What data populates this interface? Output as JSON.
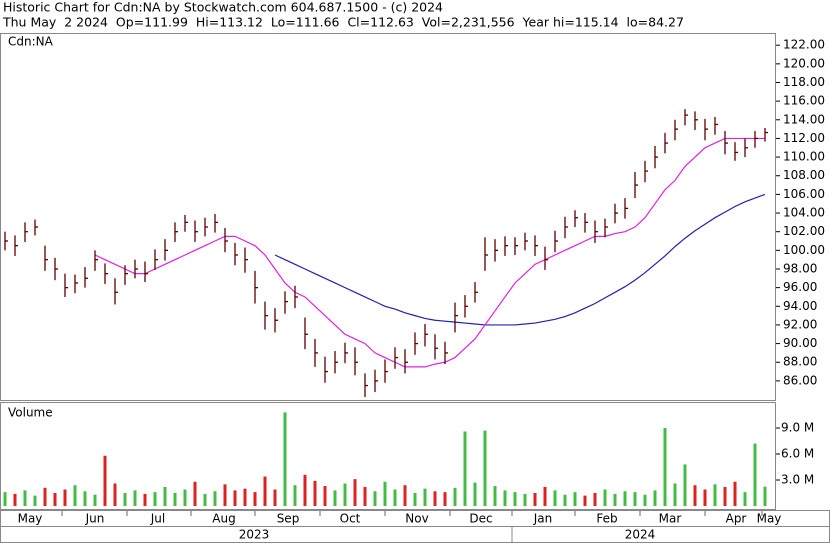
{
  "chart_data": {
    "type": "hlc",
    "title": "Historic Chart for Cdn:NA by Stockwatch.com 604.687.1500 - (c) 2024",
    "subtitle": "Thu May  2 2024  Op=111.99  Hi=113.12  Lo=111.66  Cl=112.63  Vol=2,231,556  Year hi=115.14  lo=84.27",
    "symbol_label": "Cdn:NA",
    "volume_label": "Volume",
    "months": [
      "May",
      "Jun",
      "Jul",
      "Aug",
      "Sep",
      "Oct",
      "Nov",
      "Dec",
      "Jan",
      "Feb",
      "Mar",
      "Apr",
      "May"
    ],
    "years": [
      "2023",
      "2024"
    ],
    "bar_color": "#5a0000",
    "up_color": "#44bb44",
    "down_color": "#dd2222",
    "ma_short_color": "#e020e0",
    "ma_long_color": "#2020b0",
    "ylim": [
      83.95,
      123.2
    ],
    "yticks": [
      {
        "value": 86,
        "label": "86.00"
      },
      {
        "value": 88,
        "label": "88.00"
      },
      {
        "value": 90,
        "label": "90.00"
      },
      {
        "value": 92,
        "label": "92.00"
      },
      {
        "value": 94,
        "label": "94.00"
      },
      {
        "value": 96,
        "label": "96.00"
      },
      {
        "value": 98,
        "label": "98.00"
      },
      {
        "value": 100,
        "label": "100.00"
      },
      {
        "value": 102,
        "label": "102.00"
      },
      {
        "value": 104,
        "label": "104.00"
      },
      {
        "value": 106,
        "label": "106.00"
      },
      {
        "value": 108,
        "label": "108.00"
      },
      {
        "value": 110,
        "label": "110.00"
      },
      {
        "value": 112,
        "label": "112.00"
      },
      {
        "value": 114,
        "label": "114.00"
      },
      {
        "value": 116,
        "label": "116.00"
      },
      {
        "value": 118,
        "label": "118.00"
      },
      {
        "value": 120,
        "label": "120.00"
      },
      {
        "value": 122,
        "label": "122.00"
      }
    ],
    "volume_ylim": [
      0,
      12
    ],
    "volume_yticks": [
      {
        "value": 3,
        "label": "3.0 M"
      },
      {
        "value": 6,
        "label": "6.0 M"
      },
      {
        "value": 9,
        "label": "9.0 M"
      }
    ],
    "close": [
      101,
      100.5,
      102,
      102.5,
      99,
      98,
      96,
      96.5,
      97,
      99,
      97.5,
      95.5,
      97.5,
      98,
      97.5,
      99,
      100,
      102,
      103,
      102,
      102.5,
      103,
      101,
      99.5,
      99,
      96,
      93,
      92.5,
      94.5,
      95,
      91,
      89,
      87,
      88,
      89,
      88,
      85.5,
      86,
      87,
      88.5,
      88,
      90,
      91,
      89.5,
      89,
      93,
      94,
      95.5,
      99.5,
      100,
      100.5,
      100.5,
      101,
      100.5,
      99,
      101,
      102.5,
      103.5,
      103,
      102,
      102.5,
      104,
      104.5,
      107,
      108.5,
      110,
      111.5,
      113,
      114.5,
      114,
      113,
      113.5,
      111.5,
      110.5,
      111,
      112,
      112.63
    ],
    "high": [
      102,
      101.6,
      103,
      103.3,
      100.5,
      99.2,
      97.5,
      97.4,
      98.2,
      100,
      98.6,
      97,
      98.4,
      99,
      98.8,
      100.1,
      101.2,
      103,
      103.8,
      103.2,
      103.5,
      103.9,
      102.4,
      100.8,
      100.3,
      97.8,
      94.5,
      93.8,
      95.6,
      96.2,
      92.8,
      90.5,
      88.6,
      89.2,
      90.1,
      89.6,
      86.8,
      87.2,
      88.3,
      89.6,
      89.4,
      91.2,
      92.1,
      91,
      90.2,
      94.4,
      95.2,
      96.6,
      101.4,
      101.2,
      101.5,
      101.4,
      101.9,
      101.6,
      100.4,
      102.1,
      103.6,
      104.3,
      104,
      103.2,
      103.4,
      105,
      105.6,
      108.4,
      109.6,
      111.2,
      112.6,
      114,
      115.14,
      114.9,
      114.1,
      114.3,
      112.8,
      111.6,
      112,
      112.8,
      113.12
    ],
    "low": [
      100,
      99.4,
      100.9,
      101.6,
      97.8,
      96.8,
      95,
      95.4,
      96,
      97.8,
      96.4,
      94.2,
      96.3,
      97,
      96.6,
      97.9,
      98.9,
      100.9,
      102,
      100.9,
      101.5,
      101.9,
      99.8,
      98.4,
      97.6,
      94.3,
      91.5,
      91.2,
      93.2,
      93.8,
      89.4,
      87.5,
      85.8,
      86.8,
      87.9,
      86.6,
      84.27,
      84.8,
      85.8,
      87.3,
      86.8,
      88.8,
      89.7,
      88.3,
      87.8,
      91.2,
      92.8,
      94.4,
      97.8,
      98.8,
      99.4,
      99.5,
      100,
      99.4,
      97.9,
      99.8,
      101.3,
      102.5,
      101.9,
      100.8,
      101.4,
      102.9,
      103.4,
      105.6,
      107.3,
      108.8,
      110.4,
      111.8,
      113.4,
      112.9,
      111.8,
      112.4,
      110.3,
      109.6,
      110,
      111,
      111.66
    ],
    "volume": [
      1.6,
      1.4,
      1.8,
      1.2,
      2.1,
      1.5,
      1.9,
      2.4,
      1.7,
      1.3,
      5.8,
      2.6,
      1.5,
      1.8,
      1.4,
      1.6,
      2.2,
      1.5,
      1.9,
      2.8,
      1.4,
      1.7,
      2.5,
      1.8,
      2.0,
      1.6,
      3.4,
      1.9,
      10.8,
      2.4,
      3.6,
      2.9,
      2.3,
      1.8,
      2.6,
      3.1,
      2.2,
      1.7,
      2.8,
      1.9,
      2.4,
      1.5,
      2.0,
      1.7,
      1.6,
      2.1,
      8.6,
      2.7,
      8.7,
      2.3,
      1.8,
      1.6,
      1.4,
      1.5,
      2.2,
      1.8,
      1.3,
      1.6,
      1.2,
      1.5,
      1.9,
      1.4,
      1.7,
      1.6,
      1.3,
      1.8,
      9.0,
      2.6,
      4.8,
      2.4,
      1.9,
      2.5,
      2.2,
      2.8,
      1.6,
      7.2,
      2.23
    ],
    "ma_short": [
      null,
      null,
      null,
      null,
      null,
      null,
      null,
      null,
      null,
      99.5,
      99,
      98.5,
      98,
      97.5,
      97.5,
      98,
      98.5,
      99,
      99.5,
      100,
      100.5,
      101,
      101.5,
      101.5,
      101,
      100.5,
      99.5,
      98,
      96.5,
      95.5,
      95,
      94,
      93,
      92,
      91,
      90.5,
      90,
      89,
      88.5,
      88,
      87.5,
      87.5,
      87.5,
      87.8,
      88,
      88.5,
      89.5,
      90.5,
      92,
      93.5,
      95,
      96.5,
      97.5,
      98.5,
      99,
      99.5,
      100,
      100.5,
      101,
      101.5,
      101.5,
      101.8,
      102,
      102.5,
      103.5,
      105,
      106.5,
      107.5,
      109,
      110,
      111,
      111.5,
      112,
      112,
      112,
      112,
      112
    ],
    "ma_long": [
      null,
      null,
      null,
      null,
      null,
      null,
      null,
      null,
      null,
      null,
      null,
      null,
      null,
      null,
      null,
      null,
      null,
      null,
      null,
      null,
      null,
      null,
      null,
      null,
      null,
      null,
      null,
      99.5,
      99,
      98.5,
      98,
      97.5,
      97,
      96.5,
      96,
      95.5,
      95,
      94.5,
      94,
      93.7,
      93.3,
      93,
      92.7,
      92.5,
      92.4,
      92.3,
      92.2,
      92.1,
      92,
      92,
      92,
      92,
      92.1,
      92.2,
      92.4,
      92.6,
      92.9,
      93.3,
      93.8,
      94.3,
      94.9,
      95.5,
      96.1,
      96.8,
      97.6,
      98.5,
      99.4,
      100.4,
      101.3,
      102.1,
      102.8,
      103.5,
      104.1,
      104.7,
      105.2,
      105.6,
      106
    ]
  }
}
